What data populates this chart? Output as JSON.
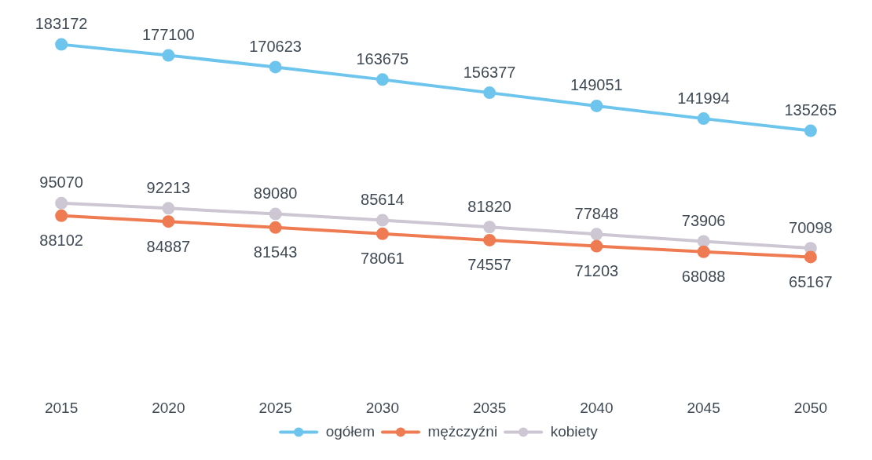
{
  "chart_data": {
    "type": "line",
    "categories": [
      "2015",
      "2020",
      "2025",
      "2030",
      "2035",
      "2040",
      "2045",
      "2050"
    ],
    "series": [
      {
        "name": "ogółem",
        "color": "#6dc5ee",
        "values": [
          183172,
          177100,
          170623,
          163675,
          156377,
          149051,
          141994,
          135265
        ]
      },
      {
        "name": "mężczyźni",
        "color": "#ef7b52",
        "values": [
          88102,
          84887,
          81543,
          78061,
          74557,
          71203,
          68088,
          65167
        ]
      },
      {
        "name": "kobiety",
        "color": "#cdc6d3",
        "values": [
          95070,
          92213,
          89080,
          85614,
          81820,
          77848,
          73906,
          70098
        ]
      }
    ],
    "tick_labels": "x",
    "data_labels": true,
    "legend": "bottom",
    "marker": "circle"
  }
}
